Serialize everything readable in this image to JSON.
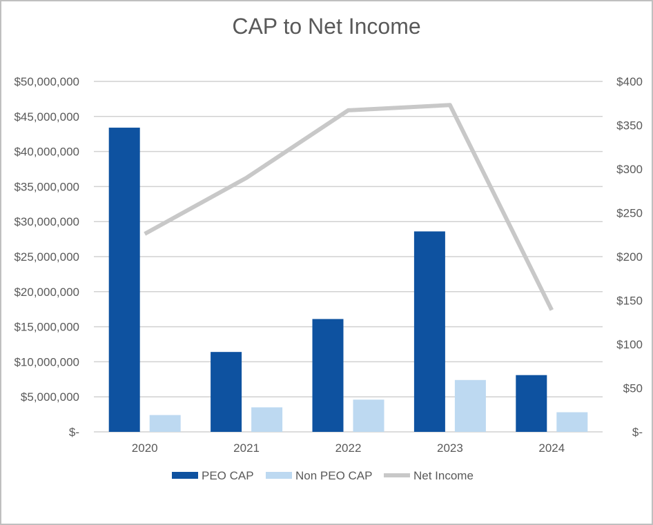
{
  "chart_data": {
    "type": "bar",
    "title": "CAP to Net Income",
    "categories": [
      "2020",
      "2021",
      "2022",
      "2023",
      "2024"
    ],
    "series": [
      {
        "name": "PEO CAP",
        "kind": "bar",
        "axis": "left",
        "color": "#0e52a0",
        "values": [
          43400000,
          11400000,
          16100000,
          28600000,
          8100000
        ]
      },
      {
        "name": "Non PEO CAP",
        "kind": "bar",
        "axis": "left",
        "color": "#bdd9f1",
        "values": [
          2400000,
          3500000,
          4600000,
          7400000,
          2800000
        ]
      },
      {
        "name": "Net Income",
        "kind": "line",
        "axis": "right",
        "color": "#c8c8c8",
        "values": [
          226,
          290,
          367,
          373,
          139
        ]
      }
    ],
    "y_left": {
      "min": 0,
      "max": 50000000,
      "step": 5000000,
      "tick_labels": [
        "$-",
        "$5,000,000",
        "$10,000,000",
        "$15,000,000",
        "$20,000,000",
        "$25,000,000",
        "$30,000,000",
        "$35,000,000",
        "$40,000,000",
        "$45,000,000",
        "$50,000,000"
      ]
    },
    "y_right": {
      "min": 0,
      "max": 400,
      "step": 50,
      "tick_labels": [
        "$-",
        "$50",
        "$100",
        "$150",
        "$200",
        "$250",
        "$300",
        "$350",
        "$400"
      ]
    },
    "grid": true,
    "legend_position": "bottom"
  }
}
